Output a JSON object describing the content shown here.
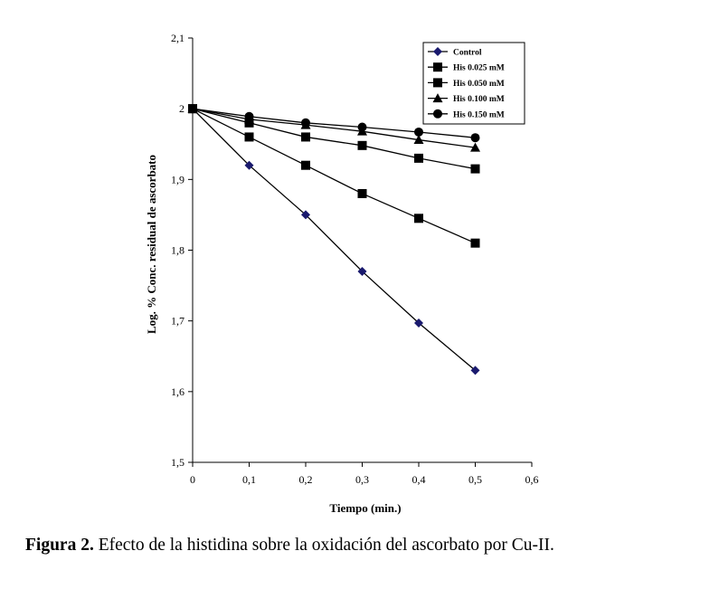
{
  "caption": {
    "label": "Figura  2.",
    "text": " Efecto de la histidina sobre la oxidación del ascorbato por Cu-II."
  },
  "chart_data": {
    "type": "line",
    "title": "",
    "xlabel": "Tiempo (min.)",
    "ylabel": "Log. % Conc. residual de ascorbato",
    "xlim": [
      0,
      0.6
    ],
    "ylim": [
      1.5,
      2.1
    ],
    "x_ticks": [
      "0",
      "0,1",
      "0,2",
      "0,3",
      "0,4",
      "0,5",
      "0,6"
    ],
    "y_ticks": [
      "1,5",
      "1,6",
      "1,7",
      "1,8",
      "1,9",
      "2",
      "2,1"
    ],
    "grid": false,
    "legend_position": "top-right",
    "x": [
      0,
      0.1,
      0.2,
      0.3,
      0.4,
      0.5
    ],
    "series": [
      {
        "name": "Control",
        "marker": "diamond",
        "color": "#1a1a6e",
        "values": [
          2.0,
          1.92,
          1.85,
          1.77,
          1.697,
          1.63
        ]
      },
      {
        "name": "His 0.025 mM",
        "marker": "square",
        "color": "#000000",
        "values": [
          2.0,
          1.96,
          1.92,
          1.88,
          1.845,
          1.81
        ]
      },
      {
        "name": "His 0.050 mM",
        "marker": "square",
        "color": "#000000",
        "values": [
          2.0,
          1.98,
          1.96,
          1.948,
          1.93,
          1.915
        ]
      },
      {
        "name": "His 0.100 mM",
        "marker": "triangle",
        "color": "#000000",
        "values": [
          2.0,
          1.985,
          1.977,
          1.968,
          1.956,
          1.945
        ]
      },
      {
        "name": "His 0.150 mM",
        "marker": "circle",
        "color": "#000000",
        "values": [
          2.0,
          1.989,
          1.98,
          1.974,
          1.967,
          1.959
        ]
      }
    ]
  }
}
